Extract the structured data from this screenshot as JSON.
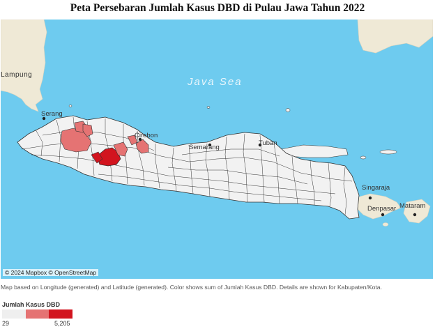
{
  "title": "Peta Persebaran Jumlah Kasus DBD di Pulau Jawa Tahun 2022",
  "map": {
    "attribution": "© 2024 Mapbox © OpenStreetMap",
    "place_labels": [
      "Lampung",
      "Java Sea",
      "Serang",
      "Cirebon",
      "Semarang",
      "Tuban",
      "Singaraja",
      "Denpasar",
      "Mataram"
    ],
    "colors": {
      "sea": "#6ecbef",
      "land": "#efe9d6",
      "region": "#f2f2f2",
      "low": "#e57878",
      "high": "#d2141e"
    }
  },
  "caption": "Map based on Longitude (generated) and Latitude (generated).  Color shows sum of Jumlah Kasus DBD.  Details are shown for Kabupaten/Kota.",
  "legend": {
    "title": "Jumlah Kasus DBD",
    "min": "29",
    "max": "5,205",
    "colors": [
      "#efefef",
      "#e57373",
      "#d2141e"
    ]
  }
}
